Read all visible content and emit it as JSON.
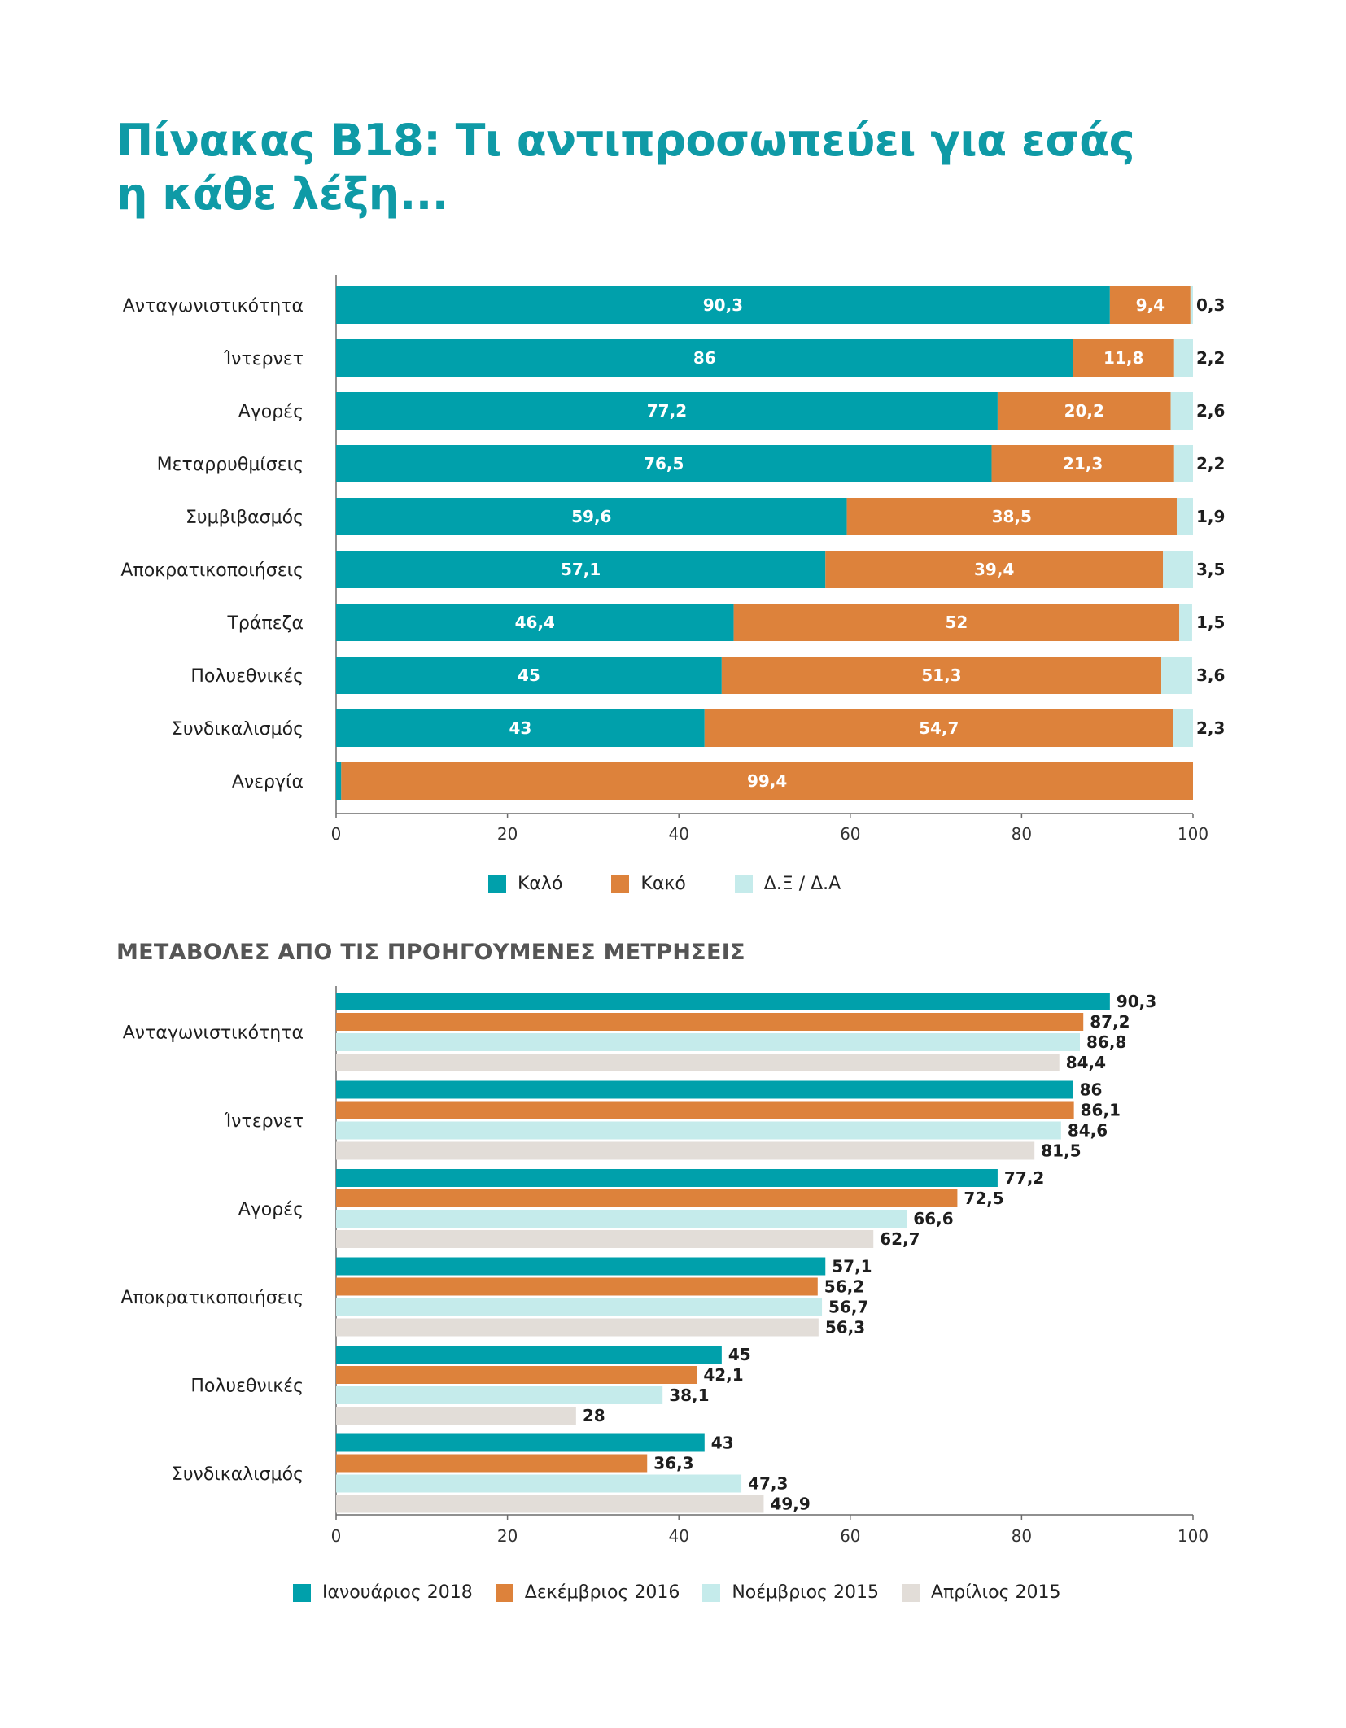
{
  "title": {
    "line1": "Πίνακας Β18: Τι αντιπροσωπεύει για εσάς",
    "line2": "η κάθε λέξη..."
  },
  "subtitle": "ΜΕΤΑΒΟΛΕΣ ΑΠΟ ΤΙΣ ΠΡΟΗΓΟΥΜΕΝΕΣ ΜΕΤΡΗΣΕΙΣ",
  "chart_data": [
    {
      "type": "bar",
      "orientation": "horizontal",
      "stacked": true,
      "categories": [
        "Ανταγωνιστικότητα",
        "Ίντερνετ",
        "Αγορές",
        "Μεταρρυθμίσεις",
        "Συμβιβασμός",
        "Αποκρατικοποιήσεις",
        "Τράπεζα",
        "Πολυεθνικές",
        "Συνδικαλισμός",
        "Ανεργία"
      ],
      "series": [
        {
          "name": "Καλό",
          "color": "#00a0ab",
          "values": [
            90.3,
            86,
            77.2,
            76.5,
            59.6,
            57.1,
            46.4,
            45,
            43,
            0.6
          ],
          "labels": [
            "90,3",
            "86",
            "77,2",
            "76,5",
            "59,6",
            "57,1",
            "46,4",
            "45",
            "43",
            "0,6"
          ]
        },
        {
          "name": "Κακό",
          "color": "#dd823b",
          "values": [
            9.4,
            11.8,
            20.2,
            21.3,
            38.5,
            39.4,
            52,
            51.3,
            54.7,
            99.4
          ],
          "labels": [
            "9,4",
            "11,8",
            "20,2",
            "21,3",
            "38,5",
            "39,4",
            "52",
            "51,3",
            "54,7",
            "99,4"
          ]
        },
        {
          "name": "Δ.Ξ / Δ.Α",
          "color": "#c5ebeb",
          "values": [
            0.3,
            2.2,
            2.6,
            2.2,
            1.9,
            3.5,
            1.5,
            3.6,
            2.3,
            null
          ],
          "labels": [
            "0,3",
            "2,2",
            "2,6",
            "2,2",
            "1,9",
            "3,5",
            "1,5",
            "3,6",
            "2,3",
            ""
          ]
        }
      ],
      "xlim": [
        0,
        100
      ],
      "xticks": [
        "0",
        "20",
        "40",
        "60",
        "80",
        "100"
      ],
      "legend": "bottom"
    },
    {
      "type": "bar",
      "orientation": "horizontal",
      "stacked": false,
      "categories": [
        "Ανταγωνιστικότητα",
        "Ίντερνετ",
        "Αγορές",
        "Αποκρατικοποιήσεις",
        "Πολυεθνικές",
        "Συνδικαλισμός"
      ],
      "series": [
        {
          "name": "Ιανουάριος 2018",
          "color": "#00a0ab",
          "values": [
            90.3,
            86,
            77.2,
            57.1,
            45,
            43
          ],
          "labels": [
            "90,3",
            "86",
            "77,2",
            "57,1",
            "45",
            "43"
          ]
        },
        {
          "name": "Δεκέμβριος 2016",
          "color": "#dd823b",
          "values": [
            87.2,
            86.1,
            72.5,
            56.2,
            42.1,
            36.3
          ],
          "labels": [
            "87,2",
            "86,1",
            "72,5",
            "56,2",
            "42,1",
            "36,3"
          ]
        },
        {
          "name": "Νοέμβριος 2015",
          "color": "#c5ebeb",
          "values": [
            86.8,
            84.6,
            66.6,
            56.7,
            38.1,
            47.3
          ],
          "labels": [
            "86,8",
            "84,6",
            "66,6",
            "56,7",
            "38,1",
            "47,3"
          ]
        },
        {
          "name": "Απρίλιος 2015",
          "color": "#e2ddd8",
          "values": [
            84.4,
            81.5,
            62.7,
            56.3,
            28,
            49.9
          ],
          "labels": [
            "84,4",
            "81,5",
            "62,7",
            "56,3",
            "28",
            "49,9"
          ]
        }
      ],
      "xlim": [
        0,
        100
      ],
      "xticks": [
        "0",
        "20",
        "40",
        "60",
        "80",
        "100"
      ],
      "legend": "bottom"
    }
  ]
}
